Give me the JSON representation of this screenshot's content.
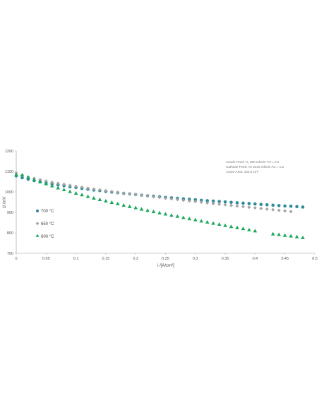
{
  "chart_data": {
    "type": "scatter",
    "xlabel": "i /[A/cm²]",
    "ylabel": "U /mV",
    "xlim": [
      0,
      0.5
    ],
    "ylim": [
      700,
      1200
    ],
    "xticks": [
      "0",
      "0.05",
      "0.1",
      "0.15",
      "0.2",
      "0.25",
      "0.3",
      "0.35",
      "0.4",
      "0.45",
      "0.5"
    ],
    "yticks": [
      "700",
      "800",
      "900",
      "1000",
      "1100",
      "1200"
    ],
    "legend_placement": "left",
    "grid": false,
    "annotations": [
      "Anode Feed: H₂ 900 ml/min FU = 0.2",
      "Cathode Feed: Air 2349 ml/min AU = 0.2",
      "Active Area: 100.0 cm²"
    ],
    "series": [
      {
        "name": "700 °C",
        "marker": "circle",
        "color": "#2e8b9a",
        "x": [
          0,
          0.01,
          0.02,
          0.03,
          0.04,
          0.05,
          0.06,
          0.07,
          0.08,
          0.09,
          0.1,
          0.11,
          0.12,
          0.13,
          0.14,
          0.15,
          0.16,
          0.17,
          0.18,
          0.19,
          0.2,
          0.21,
          0.22,
          0.23,
          0.24,
          0.25,
          0.26,
          0.27,
          0.28,
          0.29,
          0.3,
          0.31,
          0.32,
          0.33,
          0.34,
          0.35,
          0.36,
          0.37,
          0.38,
          0.39,
          0.4,
          0.41,
          0.42,
          0.43,
          0.44,
          0.45,
          0.46,
          0.47,
          0.48
        ],
        "y": [
          1078,
          1069,
          1062,
          1055,
          1049,
          1044,
          1039,
          1034,
          1030,
          1025,
          1021,
          1017,
          1013,
          1009,
          1006,
          1002,
          999,
          996,
          993,
          990,
          987,
          984,
          981,
          979,
          976,
          973,
          971,
          969,
          966,
          964,
          962,
          959,
          957,
          955,
          953,
          951,
          949,
          947,
          945,
          943,
          941,
          939,
          937,
          935,
          933,
          931,
          930,
          928,
          926
        ]
      },
      {
        "name": "650 °C",
        "marker": "diamond",
        "color": "#a3a3a3",
        "x": [
          0,
          0.01,
          0.02,
          0.03,
          0.04,
          0.05,
          0.06,
          0.07,
          0.08,
          0.09,
          0.1,
          0.11,
          0.12,
          0.13,
          0.14,
          0.15,
          0.16,
          0.17,
          0.18,
          0.19,
          0.2,
          0.21,
          0.22,
          0.23,
          0.24,
          0.25,
          0.26,
          0.27,
          0.28,
          0.29,
          0.3,
          0.31,
          0.32,
          0.33,
          0.34,
          0.35,
          0.36,
          0.37,
          0.38,
          0.39,
          0.4,
          0.41,
          0.42,
          0.43,
          0.44,
          0.45,
          0.46
        ],
        "y": [
          1092,
          1082,
          1073,
          1066,
          1059,
          1053,
          1047,
          1042,
          1037,
          1032,
          1027,
          1023,
          1018,
          1014,
          1010,
          1006,
          1002,
          998,
          994,
          991,
          987,
          983,
          980,
          976,
          973,
          969,
          966,
          963,
          959,
          956,
          953,
          950,
          946,
          943,
          940,
          937,
          934,
          931,
          928,
          925,
          922,
          919,
          916,
          913,
          910,
          907,
          904
        ]
      },
      {
        "name": "600 °C",
        "marker": "triangle",
        "color": "#1aa85c",
        "x": [
          0,
          0.01,
          0.02,
          0.03,
          0.04,
          0.05,
          0.06,
          0.07,
          0.08,
          0.09,
          0.1,
          0.11,
          0.12,
          0.13,
          0.14,
          0.15,
          0.16,
          0.17,
          0.18,
          0.19,
          0.2,
          0.21,
          0.22,
          0.23,
          0.24,
          0.25,
          0.26,
          0.27,
          0.28,
          0.29,
          0.3,
          0.31,
          0.32,
          0.33,
          0.34,
          0.35,
          0.36,
          0.37,
          0.38,
          0.39,
          0.4,
          0.43,
          0.44,
          0.45,
          0.46,
          0.47,
          0.48
        ],
        "y": [
          1085,
          1083,
          1072,
          1061,
          1050,
          1040,
          1030,
          1020,
          1011,
          1002,
          994,
          986,
          978,
          970,
          963,
          956,
          949,
          942,
          935,
          929,
          923,
          916,
          910,
          904,
          898,
          892,
          886,
          881,
          875,
          869,
          864,
          858,
          853,
          847,
          842,
          836,
          831,
          826,
          821,
          815,
          810,
          795,
          792,
          788,
          785,
          781,
          777
        ]
      }
    ]
  }
}
